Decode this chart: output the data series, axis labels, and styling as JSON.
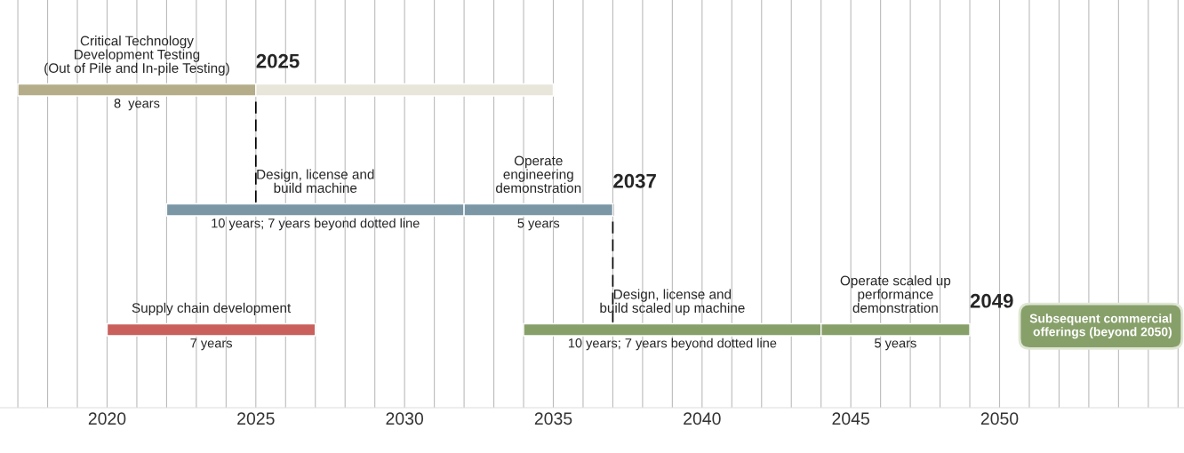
{
  "chart_data": {
    "type": "bar",
    "orientation": "horizontal",
    "categories": [
      null,
      null,
      null
    ],
    "series": [
      {
        "values": [
          8,
          10,
          7
        ],
        "base": [
          2017,
          2022,
          2020
        ],
        "colors": [
          "#b5ad8a",
          "#7b97a5",
          "#c9605c"
        ],
        "value_labels": [
          "8  years",
          "10 years; 7 years beyond dotted line",
          "7 years"
        ]
      },
      {
        "values": [
          10,
          5,
          10
        ],
        "base": [
          2025,
          2032,
          2034
        ],
        "colors": [
          "#e8e5da",
          "#7b97a5",
          "#87a06a"
        ],
        "value_labels": [
          null,
          "5 years",
          "10 years; 7 years beyond dotted line"
        ]
      },
      {
        "values": [
          null,
          null,
          5
        ],
        "base": [
          null,
          null,
          2044
        ],
        "colors": [
          "#87a06a",
          "#87a06a",
          "#87a06a"
        ],
        "value_labels": [
          null,
          null,
          "5 years"
        ]
      }
    ],
    "xlim": [
      2016.4,
      2056.2
    ],
    "xticks": [
      {
        "value": 2017,
        "label": null
      },
      {
        "value": 2018,
        "label": null
      },
      {
        "value": 2019,
        "label": null
      },
      2020,
      {
        "value": 2021,
        "label": null
      },
      {
        "value": 2022,
        "label": null
      },
      {
        "value": 2023,
        "label": null
      },
      {
        "value": 2024,
        "label": null
      },
      2025,
      {
        "value": 2026,
        "label": null
      },
      {
        "value": 2027,
        "label": null
      },
      {
        "value": 2028,
        "label": null
      },
      {
        "value": 2029,
        "label": null
      },
      2030,
      {
        "value": 2031,
        "label": null
      },
      {
        "value": 2032,
        "label": null
      },
      {
        "value": 2033,
        "label": null
      },
      {
        "value": 2034,
        "label": null
      },
      2035,
      {
        "value": 2036,
        "label": null
      },
      {
        "value": 2037,
        "label": null
      },
      {
        "value": 2038,
        "label": null
      },
      {
        "value": 2039,
        "label": null
      },
      2040,
      {
        "value": 2041,
        "label": null
      },
      {
        "value": 2042,
        "label": null
      },
      {
        "value": 2043,
        "label": null
      },
      {
        "value": 2044,
        "label": null
      },
      2045,
      {
        "value": 2046,
        "label": null
      },
      {
        "value": 2047,
        "label": null
      },
      {
        "value": 2048,
        "label": null
      },
      {
        "value": 2049,
        "label": null
      },
      2050,
      {
        "value": 2051,
        "label": null
      },
      {
        "value": 2052,
        "label": null
      },
      {
        "value": 2053,
        "label": null
      },
      {
        "value": 2054,
        "label": null
      },
      {
        "value": 2055,
        "label": null
      },
      {
        "value": 2056,
        "label": null
      }
    ],
    "grid": "x",
    "tick_labels": "x",
    "ref_lines": [
      {
        "axis": "x",
        "value": 2025,
        "label": "2025",
        "line_style": "dashed",
        "color": "#000000"
      },
      {
        "axis": "x",
        "value": 2037,
        "label": "2037",
        "line_style": "dashed",
        "color": "#000000"
      }
    ],
    "annotations": [
      "Critical Technology\nDevelopment Testing\n(Out of Pile and In-pile Testing)",
      "Design, license and\nbuild machine",
      "Operate\nengineering\ndemonstration",
      "Supply chain development",
      "Design, license and\nbuild scaled up machine",
      "Operate scaled up\nperformance\ndemonstration",
      "2049",
      "Subsequent commercial\nofferings (beyond 2050)"
    ]
  }
}
